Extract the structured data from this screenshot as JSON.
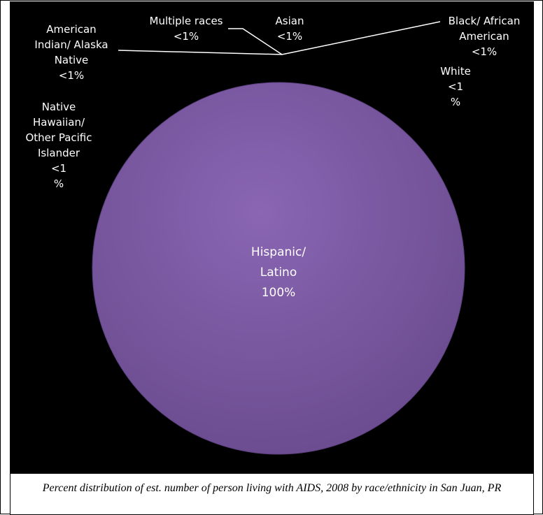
{
  "chart_data": {
    "type": "pie",
    "slices": [
      {
        "label": "Hispanic/ Latino",
        "display": "Hispanic/\nLatino\n100%",
        "value": 100
      },
      {
        "label": "Multiple races",
        "display": "Multiple races\n<1%",
        "value": 0
      },
      {
        "label": "Asian",
        "display": "Asian\n<1%",
        "value": 0
      },
      {
        "label": "Black/ African American",
        "display": "Black/ African\nAmerican\n<1%",
        "value": 0
      },
      {
        "label": "American Indian/ Alaska Native",
        "display": "American\nIndian/ Alaska\nNative\n<1%",
        "value": 0
      },
      {
        "label": "White",
        "display": "White\n<1\n%",
        "value": 0
      },
      {
        "label": "Native Hawaiian/ Other Pacific Islander",
        "display": "Native\nHawaiian/\nOther Pacific\nIslander\n<1\n%",
        "value": 0
      }
    ],
    "colors": {
      "slice": "#7a5a9e",
      "background": "#000000",
      "label": "#ffffff"
    }
  },
  "caption": "Percent distribution of est. number of person living with AIDS, 2008 by race/ethnicity in San Juan, PR"
}
